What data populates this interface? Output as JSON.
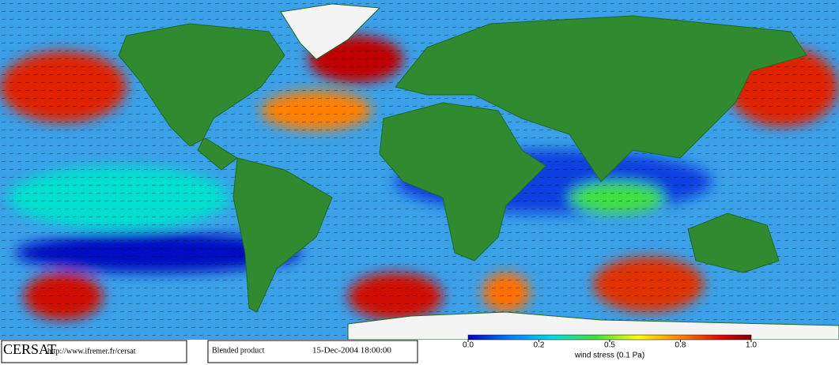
{
  "credit": {
    "logo": "CERSAT",
    "url": "http://www.ifremer.fr/cersat"
  },
  "product": {
    "name": "Blended product",
    "date": "15-Dec-2004 18:00:00"
  },
  "colorbar": {
    "label": "wind stress (0.1 Pa)",
    "ticks": [
      {
        "value": 0,
        "label": "0.0"
      },
      0.2,
      0.5,
      0.8,
      {
        "value": 1,
        "label": "1.0"
      }
    ]
  }
}
